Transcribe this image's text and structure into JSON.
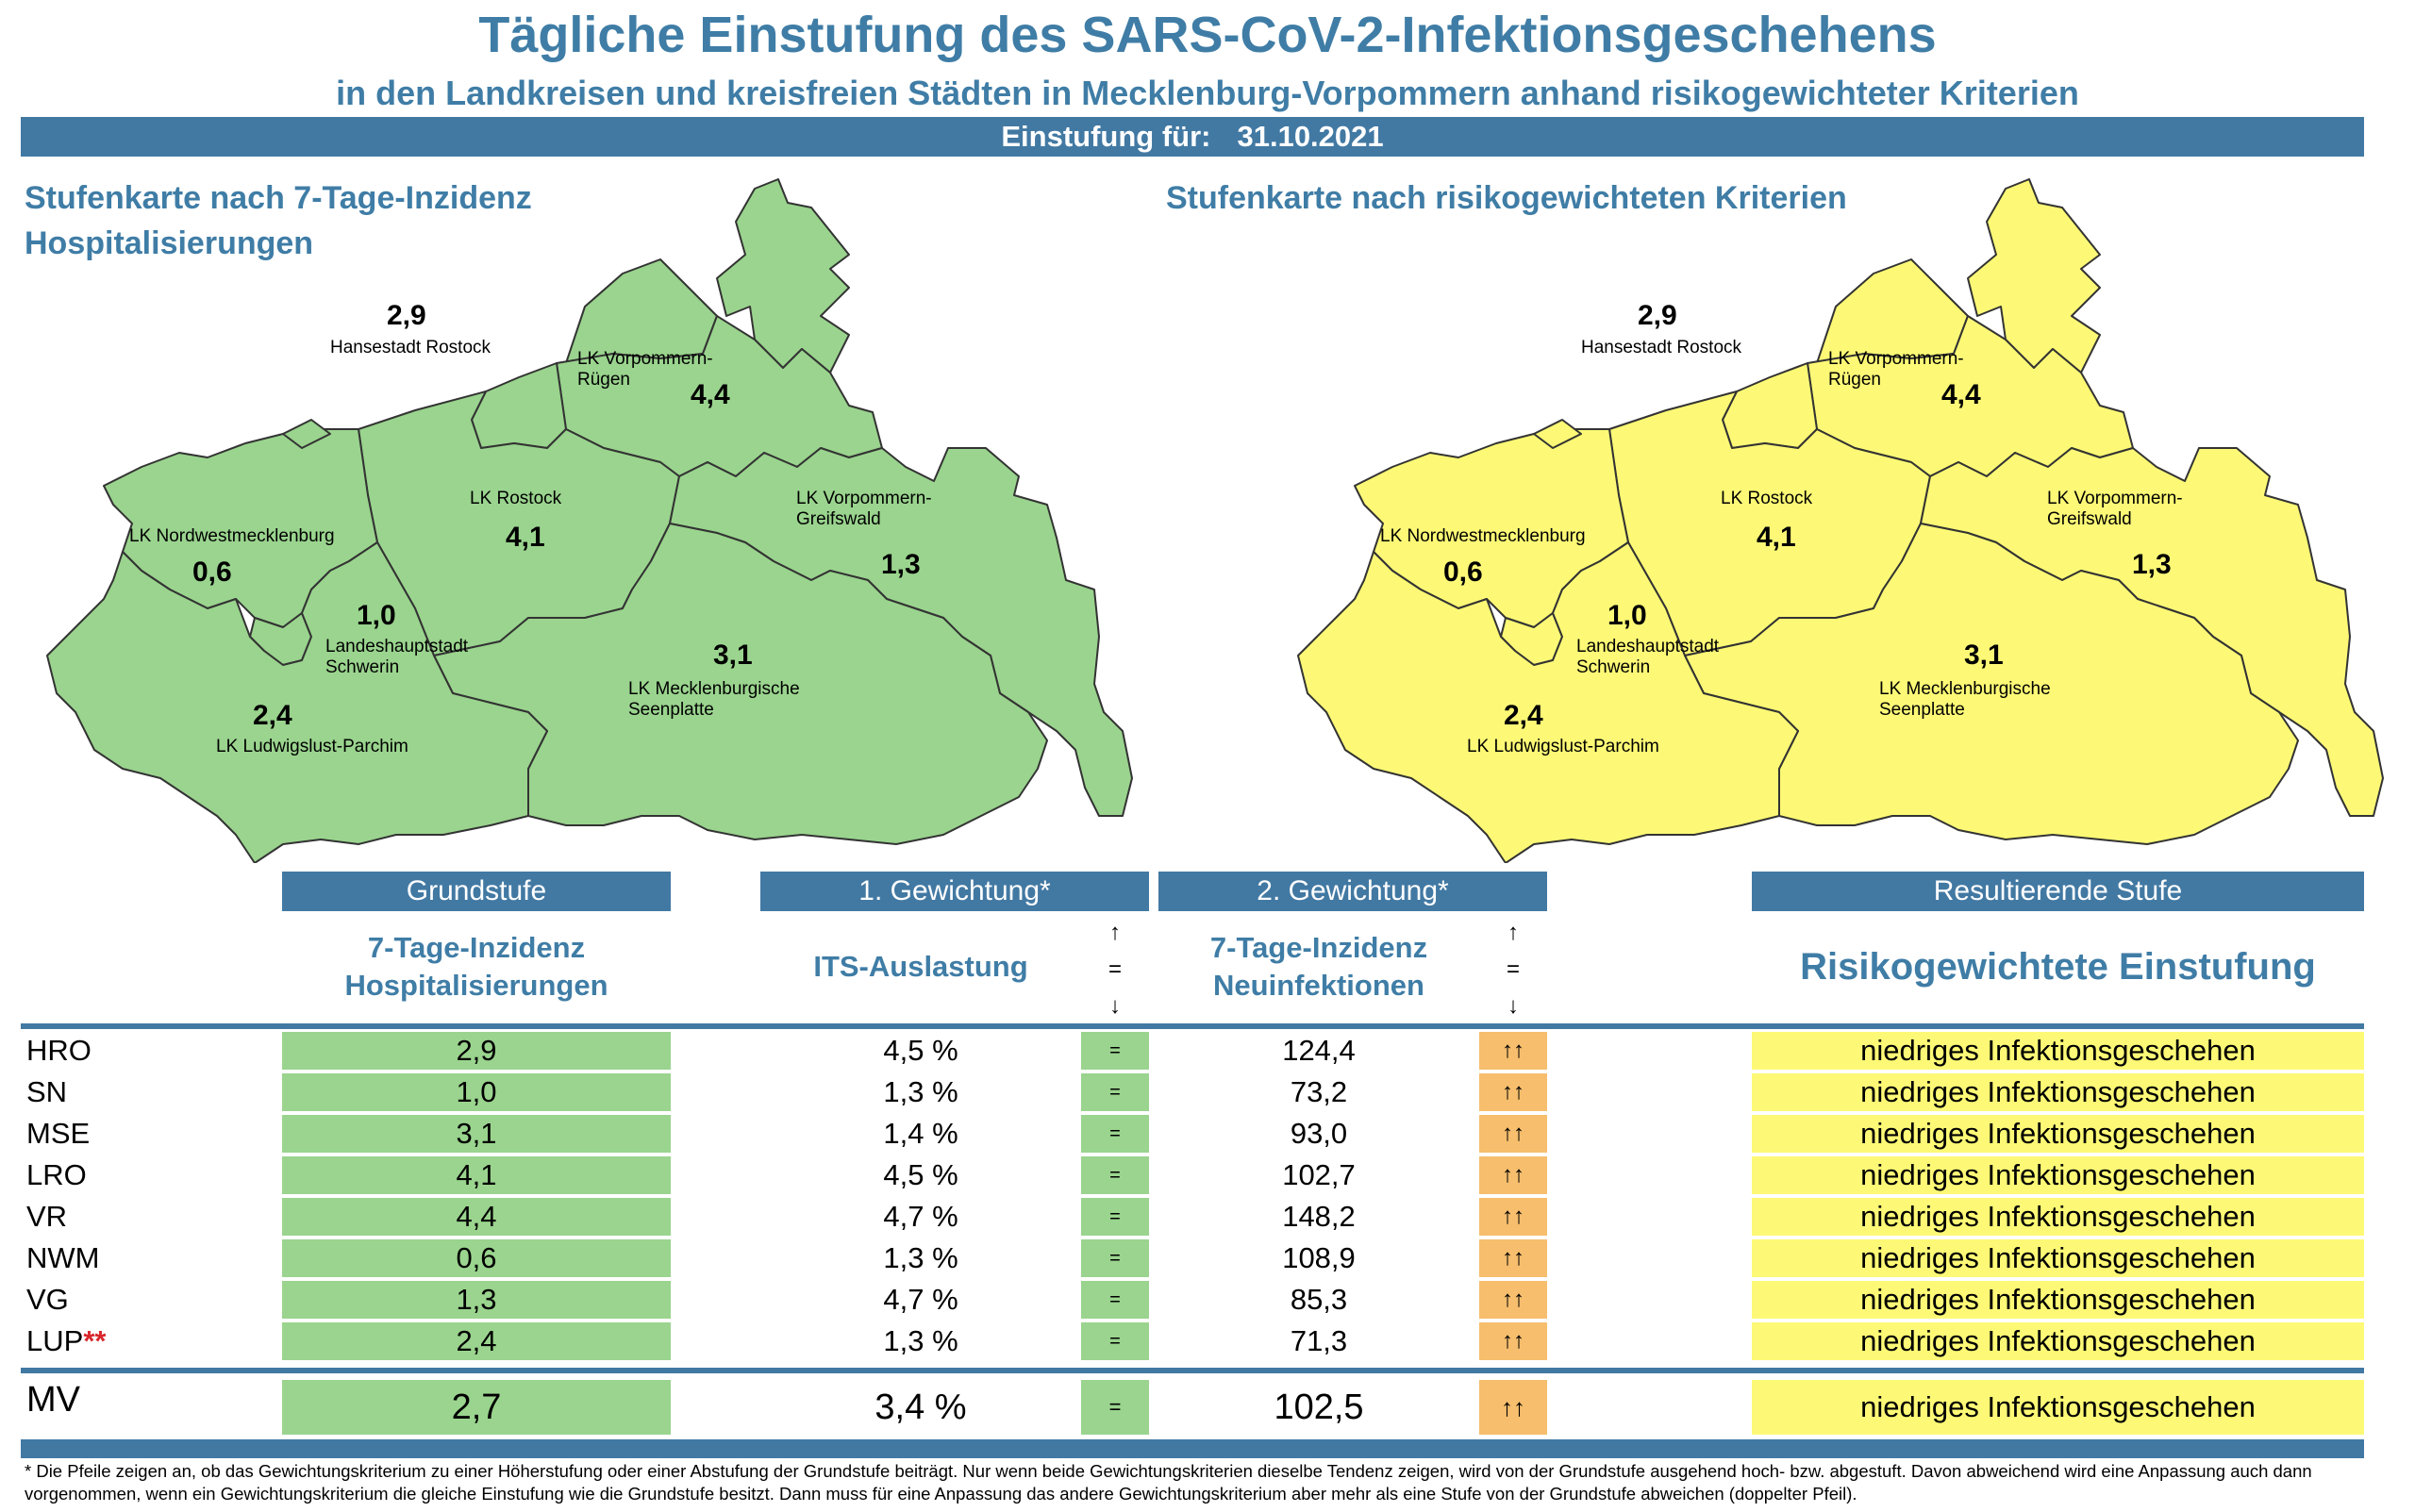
{
  "header": {
    "title": "Tägliche Einstufung des SARS-CoV-2-Infektionsgeschehens",
    "subtitle": "in den Landkreisen und kreisfreien Städten in Mecklenburg-Vorpommern anhand risikogewichteter Kriterien",
    "date_label": "Einstufung für:",
    "date_value": "31.10.2021"
  },
  "map_left": {
    "title_line1": "Stufenkarte nach 7-Tage-Inzidenz",
    "title_line2": "Hospitalisierungen",
    "fill_color": "#9ad48e"
  },
  "map_right": {
    "title": "Stufenkarte nach risikogewichteten Kriterien",
    "fill_color": "#fdf976"
  },
  "regions": [
    {
      "name_line1": "Hansestadt Rostock",
      "name_line2": "",
      "value": "2,9"
    },
    {
      "name_line1": "LK Vorpommern-",
      "name_line2": "Rügen",
      "value": "4,4"
    },
    {
      "name_line1": "LK Rostock",
      "name_line2": "",
      "value": "4,1"
    },
    {
      "name_line1": "LK Vorpommern-",
      "name_line2": "Greifswald",
      "value": "1,3"
    },
    {
      "name_line1": "LK Nordwestmecklenburg",
      "name_line2": "",
      "value": "0,6"
    },
    {
      "name_line1": "Landeshauptstadt",
      "name_line2": "Schwerin",
      "value": "1,0"
    },
    {
      "name_line1": "LK Mecklenburgische",
      "name_line2": "Seenplatte",
      "value": "3,1"
    },
    {
      "name_line1": "LK Ludwigslust-Parchim",
      "name_line2": "",
      "value": "2,4"
    }
  ],
  "table": {
    "headers": {
      "grundstufe": "Grundstufe",
      "gewichtung1": "1. Gewichtung*",
      "gewichtung2": "2. Gewichtung*",
      "resultierend": "Resultierende Stufe"
    },
    "subheaders": {
      "grundstufe_line1": "7-Tage-Inzidenz",
      "grundstufe_line2": "Hospitalisierungen",
      "gewichtung1": "ITS-Auslastung",
      "gewichtung2_line1": "7-Tage-Inzidenz",
      "gewichtung2_line2": "Neuinfektionen",
      "resultierend": "Risikogewichtete Einstufung",
      "arrow_up": "↑",
      "arrow_eq": "=",
      "arrow_down": "↓"
    },
    "rows": [
      {
        "code": "HRO",
        "stars": "",
        "hosp": "2,9",
        "its": "4,5 %",
        "its_trend": "=",
        "inz": "124,4",
        "inz_trend": "↑↑",
        "result": "niedriges Infektionsgeschehen"
      },
      {
        "code": "SN",
        "stars": "",
        "hosp": "1,0",
        "its": "1,3 %",
        "its_trend": "=",
        "inz": "73,2",
        "inz_trend": "↑↑",
        "result": "niedriges Infektionsgeschehen"
      },
      {
        "code": "MSE",
        "stars": "",
        "hosp": "3,1",
        "its": "1,4 %",
        "its_trend": "=",
        "inz": "93,0",
        "inz_trend": "↑↑",
        "result": "niedriges Infektionsgeschehen"
      },
      {
        "code": "LRO",
        "stars": "",
        "hosp": "4,1",
        "its": "4,5 %",
        "its_trend": "=",
        "inz": "102,7",
        "inz_trend": "↑↑",
        "result": "niedriges Infektionsgeschehen"
      },
      {
        "code": "VR",
        "stars": "",
        "hosp": "4,4",
        "its": "4,7 %",
        "its_trend": "=",
        "inz": "148,2",
        "inz_trend": "↑↑",
        "result": "niedriges Infektionsgeschehen"
      },
      {
        "code": "NWM",
        "stars": "",
        "hosp": "0,6",
        "its": "1,3 %",
        "its_trend": "=",
        "inz": "108,9",
        "inz_trend": "↑↑",
        "result": "niedriges Infektionsgeschehen"
      },
      {
        "code": "VG",
        "stars": "",
        "hosp": "1,3",
        "its": "4,7 %",
        "its_trend": "=",
        "inz": "85,3",
        "inz_trend": "↑↑",
        "result": "niedriges Infektionsgeschehen"
      },
      {
        "code": "LUP",
        "stars": "**",
        "hosp": "2,4",
        "its": "1,3 %",
        "its_trend": "=",
        "inz": "71,3",
        "inz_trend": "↑↑",
        "result": "niedriges Infektionsgeschehen"
      }
    ],
    "total": {
      "code": "MV",
      "hosp": "2,7",
      "its": "3,4 %",
      "its_trend": "=",
      "inz": "102,5",
      "inz_trend": "↑↑",
      "result": "niedriges Infektionsgeschehen"
    }
  },
  "footnote": "* Die Pfeile zeigen an, ob das Gewichtungskriterium zu einer Höherstufung oder einer Abstufung der Grundstufe beiträgt. Nur wenn beide Gewichtungskriterien dieselbe Tendenz zeigen, wird von der Grundstufe ausgehend hoch- bzw. abgestuft.  Davon abweichend wird eine Anpassung auch dann vorgenommen, wenn ein Gewichtungskriterium die gleiche Einstufung wie die Grundstufe besitzt. Dann muss für eine Anpassung das andere Gewichtungskriterium aber mehr als eine Stufe von der Grundstufe abweichen (doppelter Pfeil)."
}
